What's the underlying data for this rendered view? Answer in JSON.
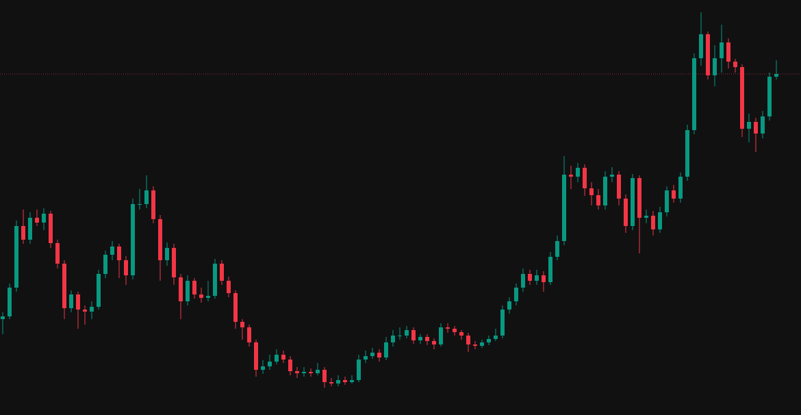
{
  "chart_data": {
    "type": "candlestick",
    "up_color": "#089981",
    "down_color": "#f23645",
    "background": "#111112",
    "ylim": [
      0,
      606
    ],
    "last_price": 498,
    "last_price_color": "#f23645",
    "candles": [
      [
        140,
        150,
        118,
        144
      ],
      [
        144,
        192,
        140,
        186
      ],
      [
        186,
        284,
        180,
        276
      ],
      [
        276,
        300,
        250,
        256
      ],
      [
        256,
        296,
        250,
        288
      ],
      [
        288,
        300,
        276,
        281
      ],
      [
        281,
        302,
        270,
        294
      ],
      [
        294,
        298,
        244,
        251
      ],
      [
        251,
        256,
        214,
        221
      ],
      [
        221,
        226,
        140,
        156
      ],
      [
        156,
        182,
        150,
        176
      ],
      [
        176,
        180,
        126,
        154
      ],
      [
        154,
        160,
        132,
        151
      ],
      [
        151,
        166,
        140,
        158
      ],
      [
        158,
        212,
        154,
        206
      ],
      [
        206,
        240,
        200,
        234
      ],
      [
        234,
        254,
        226,
        246
      ],
      [
        246,
        250,
        200,
        226
      ],
      [
        226,
        232,
        190,
        204
      ],
      [
        204,
        316,
        198,
        308
      ],
      [
        308,
        330,
        300,
        308
      ],
      [
        308,
        350,
        302,
        328
      ],
      [
        328,
        334,
        280,
        286
      ],
      [
        286,
        292,
        196,
        226
      ],
      [
        226,
        252,
        218,
        244
      ],
      [
        244,
        250,
        190,
        201
      ],
      [
        201,
        206,
        140,
        166
      ],
      [
        166,
        204,
        160,
        196
      ],
      [
        196,
        200,
        170,
        176
      ],
      [
        176,
        186,
        164,
        171
      ],
      [
        171,
        196,
        166,
        174
      ],
      [
        174,
        228,
        170,
        221
      ],
      [
        221,
        226,
        190,
        196
      ],
      [
        196,
        202,
        172,
        178
      ],
      [
        178,
        182,
        126,
        136
      ],
      [
        136,
        140,
        110,
        128
      ],
      [
        128,
        132,
        100,
        106
      ],
      [
        106,
        110,
        56,
        66
      ],
      [
        66,
        80,
        60,
        71
      ],
      [
        71,
        88,
        66,
        78
      ],
      [
        78,
        96,
        74,
        88
      ],
      [
        88,
        94,
        76,
        81
      ],
      [
        81,
        86,
        58,
        64
      ],
      [
        64,
        70,
        54,
        61
      ],
      [
        61,
        70,
        56,
        63
      ],
      [
        63,
        68,
        56,
        61
      ],
      [
        61,
        76,
        58,
        66
      ],
      [
        66,
        70,
        40,
        48
      ],
      [
        48,
        54,
        42,
        46
      ],
      [
        46,
        58,
        42,
        51
      ],
      [
        51,
        56,
        44,
        48
      ],
      [
        48,
        58,
        46,
        51
      ],
      [
        51,
        88,
        48,
        81
      ],
      [
        81,
        94,
        76,
        86
      ],
      [
        86,
        98,
        82,
        91
      ],
      [
        91,
        96,
        78,
        84
      ],
      [
        84,
        114,
        80,
        106
      ],
      [
        106,
        124,
        100,
        116
      ],
      [
        116,
        128,
        110,
        116
      ],
      [
        116,
        130,
        112,
        124
      ],
      [
        124,
        128,
        104,
        109
      ],
      [
        109,
        118,
        104,
        114
      ],
      [
        114,
        118,
        102,
        108
      ],
      [
        108,
        112,
        96,
        103
      ],
      [
        103,
        134,
        100,
        128
      ],
      [
        128,
        134,
        120,
        126
      ],
      [
        126,
        130,
        116,
        121
      ],
      [
        121,
        124,
        110,
        116
      ],
      [
        116,
        120,
        92,
        103
      ],
      [
        103,
        108,
        96,
        101
      ],
      [
        101,
        110,
        98,
        106
      ],
      [
        106,
        116,
        102,
        111
      ],
      [
        111,
        126,
        108,
        116
      ],
      [
        116,
        160,
        112,
        154
      ],
      [
        154,
        172,
        148,
        166
      ],
      [
        166,
        192,
        160,
        186
      ],
      [
        186,
        214,
        180,
        206
      ],
      [
        206,
        212,
        190,
        196
      ],
      [
        196,
        212,
        190,
        204
      ],
      [
        204,
        210,
        180,
        194
      ],
      [
        194,
        238,
        190,
        231
      ],
      [
        231,
        262,
        226,
        254
      ],
      [
        254,
        378,
        248,
        351
      ],
      [
        351,
        364,
        330,
        348
      ],
      [
        348,
        368,
        340,
        361
      ],
      [
        361,
        366,
        320,
        331
      ],
      [
        331,
        340,
        306,
        321
      ],
      [
        321,
        330,
        300,
        306
      ],
      [
        306,
        356,
        300,
        348
      ],
      [
        348,
        362,
        340,
        351
      ],
      [
        351,
        356,
        306,
        316
      ],
      [
        316,
        322,
        266,
        276
      ],
      [
        276,
        352,
        270,
        346
      ],
      [
        346,
        350,
        236,
        288
      ],
      [
        288,
        300,
        280,
        291
      ],
      [
        291,
        298,
        262,
        271
      ],
      [
        271,
        304,
        266,
        296
      ],
      [
        296,
        334,
        290,
        328
      ],
      [
        328,
        336,
        310,
        316
      ],
      [
        316,
        354,
        310,
        348
      ],
      [
        348,
        424,
        342,
        416
      ],
      [
        416,
        528,
        410,
        521
      ],
      [
        521,
        588,
        510,
        556
      ],
      [
        556,
        560,
        490,
        496
      ],
      [
        496,
        540,
        480,
        521
      ],
      [
        521,
        570,
        500,
        544
      ],
      [
        544,
        550,
        506,
        516
      ],
      [
        516,
        520,
        500,
        508
      ],
      [
        508,
        512,
        406,
        418
      ],
      [
        418,
        440,
        398,
        428
      ],
      [
        428,
        434,
        384,
        411
      ],
      [
        411,
        444,
        404,
        436
      ],
      [
        436,
        500,
        430,
        494
      ],
      [
        494,
        518,
        490,
        498
      ]
    ]
  }
}
